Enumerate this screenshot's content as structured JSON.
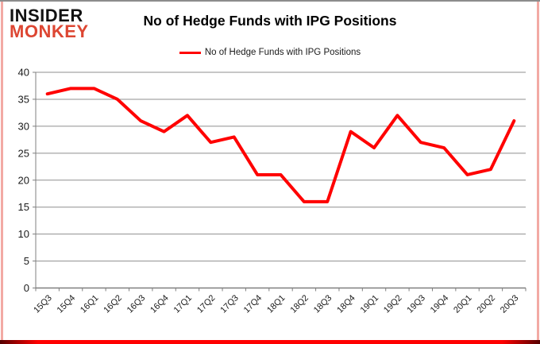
{
  "logo": {
    "line1": "INSIDER",
    "line2": "MONKEY"
  },
  "header": {
    "title": "No of Hedge Funds with IPG Positions"
  },
  "legend": {
    "label": "No of Hedge Funds with IPG Positions"
  },
  "chart_data": {
    "type": "line",
    "title": "No of Hedge Funds with IPG Positions",
    "categories": [
      "15Q3",
      "15Q4",
      "16Q1",
      "16Q2",
      "16Q3",
      "16Q4",
      "17Q1",
      "17Q2",
      "17Q3",
      "17Q4",
      "18Q1",
      "18Q2",
      "18Q3",
      "18Q4",
      "19Q1",
      "19Q2",
      "19Q3",
      "19Q4",
      "20Q1",
      "20Q2",
      "20Q3"
    ],
    "series": [
      {
        "name": "No of Hedge Funds with IPG Positions",
        "color": "#ff0000",
        "values": [
          36,
          37,
          37,
          35,
          31,
          29,
          32,
          27,
          28,
          21,
          21,
          16,
          16,
          29,
          26,
          32,
          27,
          26,
          21,
          22,
          31
        ]
      }
    ],
    "ylim": [
      0,
      40
    ],
    "ytick_step": 5,
    "yticks": [
      0,
      5,
      10,
      15,
      20,
      25,
      30,
      35,
      40
    ],
    "grid": true,
    "legend_position": "top-center"
  },
  "colors": {
    "line": "#ff0000",
    "logo_red": "#dd4632",
    "gridline": "#8f8f8f",
    "axis": "#7f7f7f",
    "tick_text": "#1a1a1a",
    "border_pink": "#f2aaa4",
    "border_gray": "#8c8c8c",
    "border_bottom_red": "#ff0000"
  }
}
